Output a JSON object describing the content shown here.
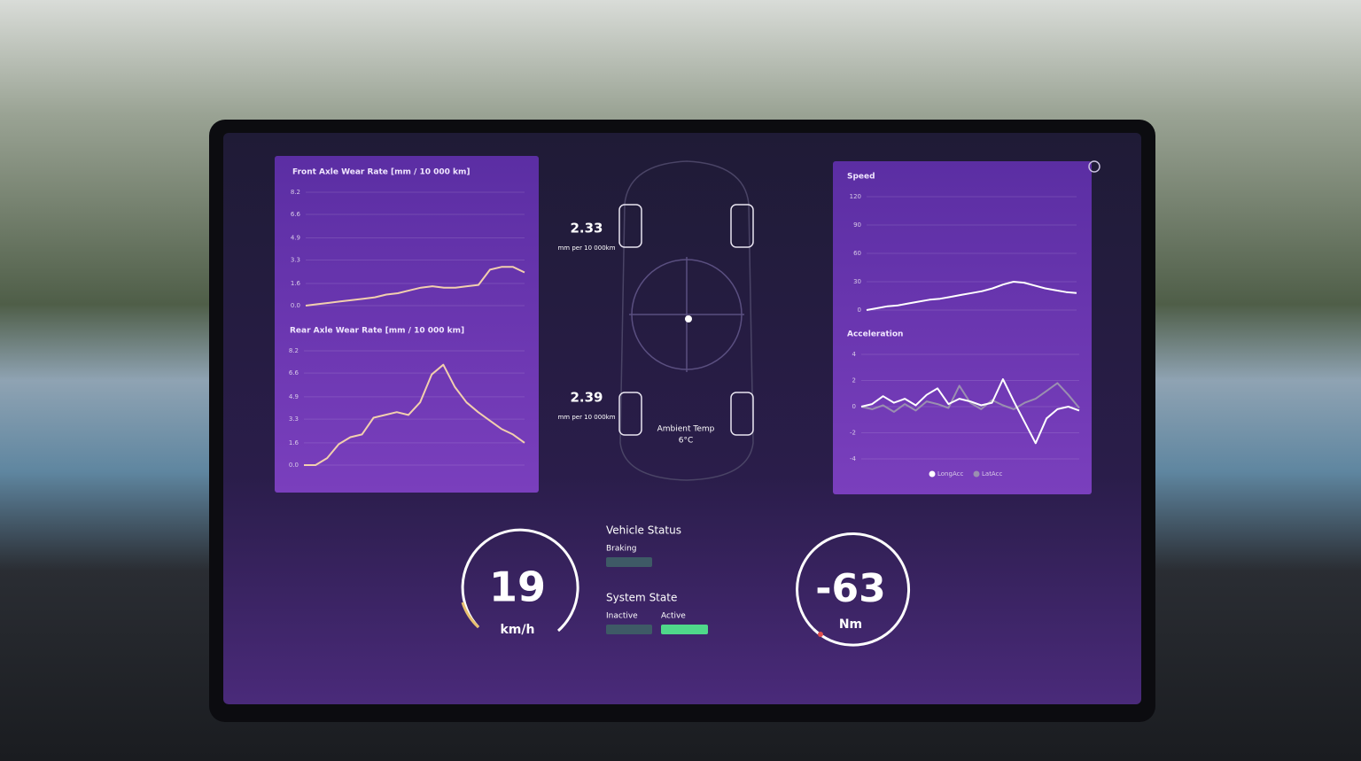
{
  "chart_data": [
    {
      "type": "line",
      "title": "Front Axle Wear Rate [mm / 10 000 km]",
      "color": "#f2cfae",
      "values": [
        0.0,
        0.1,
        0.2,
        0.3,
        0.4,
        0.5,
        0.6,
        0.8,
        0.9,
        1.1,
        1.3,
        1.4,
        1.3,
        1.3,
        1.4,
        1.5,
        2.6,
        2.8,
        2.8,
        2.4
      ],
      "ylim": [
        0,
        8.2
      ],
      "yticks": [
        {
          "value": 0,
          "label": "0.0"
        },
        1.6,
        3.3,
        4.9,
        6.6,
        8.2
      ],
      "grid": true
    },
    {
      "type": "line",
      "title": "Rear Axle Wear Rate [mm / 10 000 km]",
      "color": "#f2cfae",
      "values": [
        0.0,
        0.0,
        0.5,
        1.5,
        2.0,
        2.2,
        3.4,
        3.6,
        3.8,
        3.6,
        4.5,
        6.5,
        7.2,
        5.6,
        4.5,
        3.8,
        3.2,
        2.6,
        2.2,
        1.6
      ],
      "ylim": [
        0,
        8.2
      ],
      "yticks": [
        {
          "value": 0,
          "label": "0.0"
        },
        1.6,
        3.3,
        4.9,
        6.6,
        8.2
      ],
      "grid": true
    },
    {
      "type": "line",
      "title": "Speed",
      "color": "#ffffff",
      "values": [
        0,
        2,
        4,
        5,
        7,
        9,
        11,
        12,
        14,
        16,
        18,
        20,
        23,
        27,
        30,
        29,
        26,
        23,
        21,
        19,
        18
      ],
      "ylim": [
        0,
        120
      ],
      "yticks": [
        0,
        30,
        60,
        90,
        120
      ],
      "grid": true
    },
    {
      "type": "line",
      "title": "Acceleration",
      "legend": "bottom",
      "series": [
        {
          "name": "LongAcc",
          "color": "#ffffff",
          "values": [
            0,
            0.2,
            0.8,
            0.3,
            0.6,
            0.1,
            0.9,
            1.4,
            0.2,
            0.6,
            0.4,
            0.1,
            0.3,
            2.1,
            0.4,
            -1.2,
            -2.8,
            -0.9,
            -0.2,
            0.0,
            -0.3
          ]
        },
        {
          "name": "LatAcc",
          "color": "#9a8fb0",
          "values": [
            0,
            -0.2,
            0.1,
            -0.4,
            0.2,
            -0.3,
            0.4,
            0.2,
            -0.1,
            1.6,
            0.3,
            -0.2,
            0.5,
            0.1,
            -0.2,
            0.3,
            0.6,
            1.2,
            1.8,
            0.9,
            -0.1
          ]
        }
      ],
      "ylim": [
        -4,
        4
      ],
      "yticks": [
        -4,
        -2,
        0,
        2,
        4
      ],
      "grid": true
    }
  ],
  "wear": [
    {
      "value": 2.33,
      "unit": "mm per 10 000km"
    },
    {
      "value": 2.39,
      "unit": "mm per 10 000km"
    }
  ],
  "ambient": {
    "label": "Ambient Temp",
    "value": "6°C"
  },
  "gauges": [
    {
      "value": 19,
      "unit": "km/h"
    },
    {
      "value": -63,
      "unit": "Nm"
    }
  ],
  "status": {
    "vehicle_title": "Vehicle Status",
    "braking": "Braking",
    "system_title": "System State",
    "inactive": "Inactive",
    "active": "Active"
  }
}
